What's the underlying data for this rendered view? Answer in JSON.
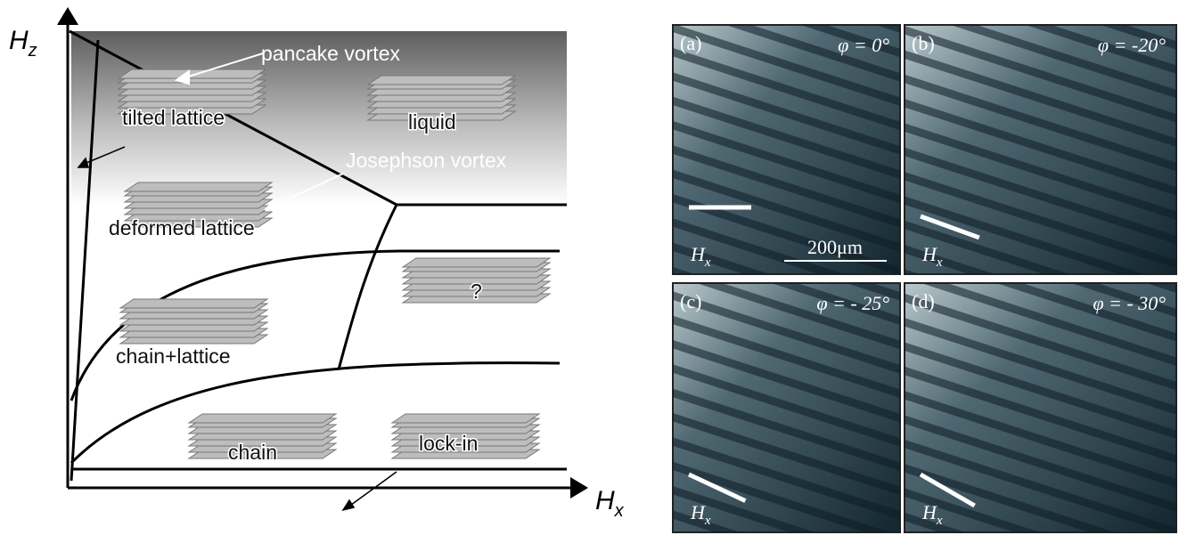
{
  "diagram": {
    "axes": {
      "y": {
        "main": "H",
        "sub": "z"
      },
      "x": {
        "main": "H",
        "sub": "x"
      }
    },
    "labels": {
      "pancake": "pancake vortex",
      "tilted": "tilted lattice",
      "liquid": "liquid",
      "josephson": "Josephson vortex",
      "deformed": "deformed lattice",
      "unknown": "?",
      "chain_lattice": "chain+lattice",
      "chain": "chain",
      "lockin": "lock-in"
    }
  },
  "panels": [
    {
      "label": "(a)",
      "angle": "φ = 0°",
      "field_main": "H",
      "field_sub": "x",
      "scale": "200μm"
    },
    {
      "label": "(b)",
      "angle": "φ = -20°",
      "field_main": "H",
      "field_sub": "x"
    },
    {
      "label": "(c)",
      "angle": "φ = - 25°",
      "field_main": "H",
      "field_sub": "x"
    },
    {
      "label": "(d)",
      "angle": "φ = - 30°",
      "field_main": "H",
      "field_sub": "x"
    }
  ]
}
